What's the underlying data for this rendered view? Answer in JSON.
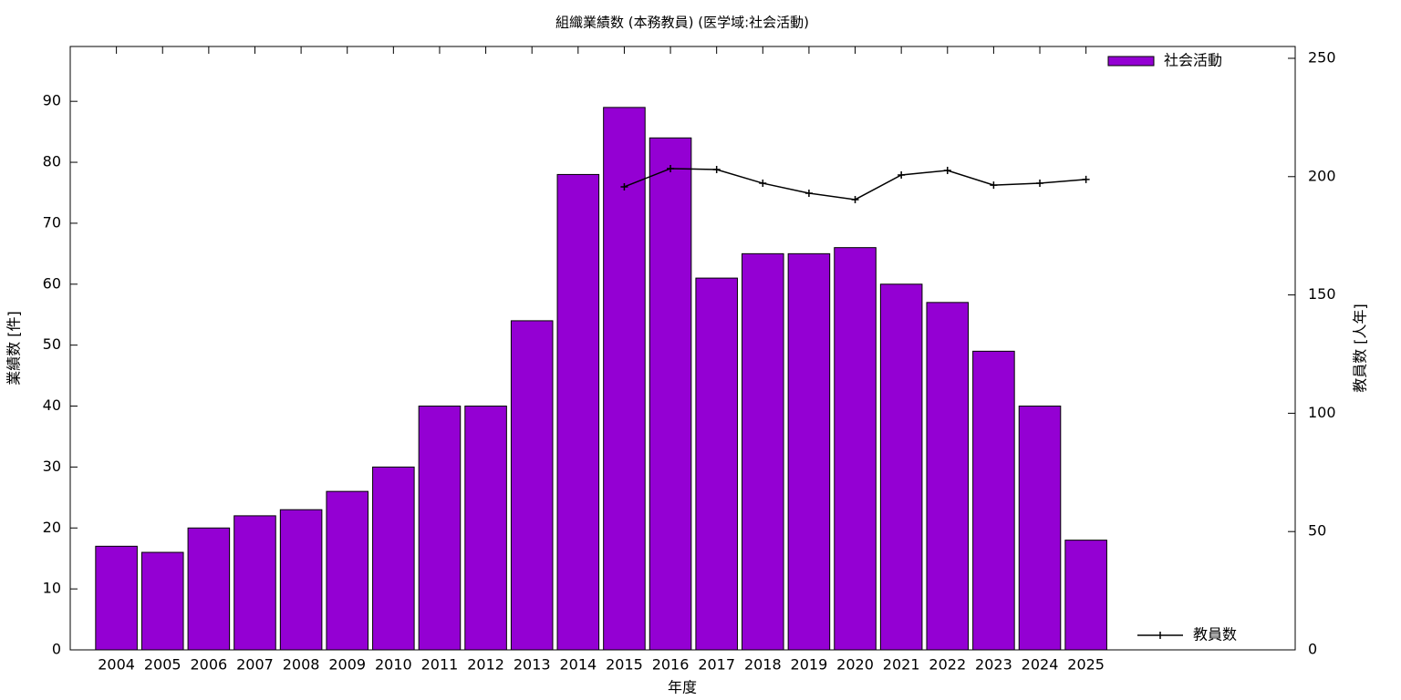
{
  "chart_data": {
    "type": "bar",
    "title": "組織業績数 (本務教員) (医学域:社会活動)",
    "x_label": "年度",
    "y_label": "業績数 [件]",
    "y2_label": "教員数 [人年]",
    "categories": [
      "2004",
      "2005",
      "2006",
      "2007",
      "2008",
      "2009",
      "2010",
      "2011",
      "2012",
      "2013",
      "2014",
      "2015",
      "2016",
      "2017",
      "2018",
      "2019",
      "2020",
      "2021",
      "2022",
      "2023",
      "2024",
      "2025"
    ],
    "series": [
      {
        "name": "社会活動",
        "type": "bar",
        "color": "#9400d3",
        "values": [
          17,
          16,
          20,
          22,
          23,
          26,
          30,
          40,
          40,
          54,
          78,
          89,
          84,
          61,
          65,
          65,
          66,
          60,
          57,
          49,
          40,
          18
        ]
      },
      {
        "name": "教員数",
        "type": "line",
        "axis": "y2",
        "color": "#000000",
        "values": [
          null,
          null,
          null,
          null,
          null,
          null,
          null,
          null,
          null,
          null,
          null,
          195.7,
          203.4,
          203,
          197.2,
          193,
          190.3,
          200.7,
          202.6,
          196.4,
          197.2,
          198.8
        ]
      }
    ],
    "ylim": [
      0,
      99
    ],
    "yticks": [
      0,
      10,
      20,
      30,
      40,
      50,
      60,
      70,
      80,
      90
    ],
    "y2lim": [
      0,
      255
    ],
    "y2ticks": [
      0,
      50,
      100,
      150,
      200,
      250
    ]
  }
}
